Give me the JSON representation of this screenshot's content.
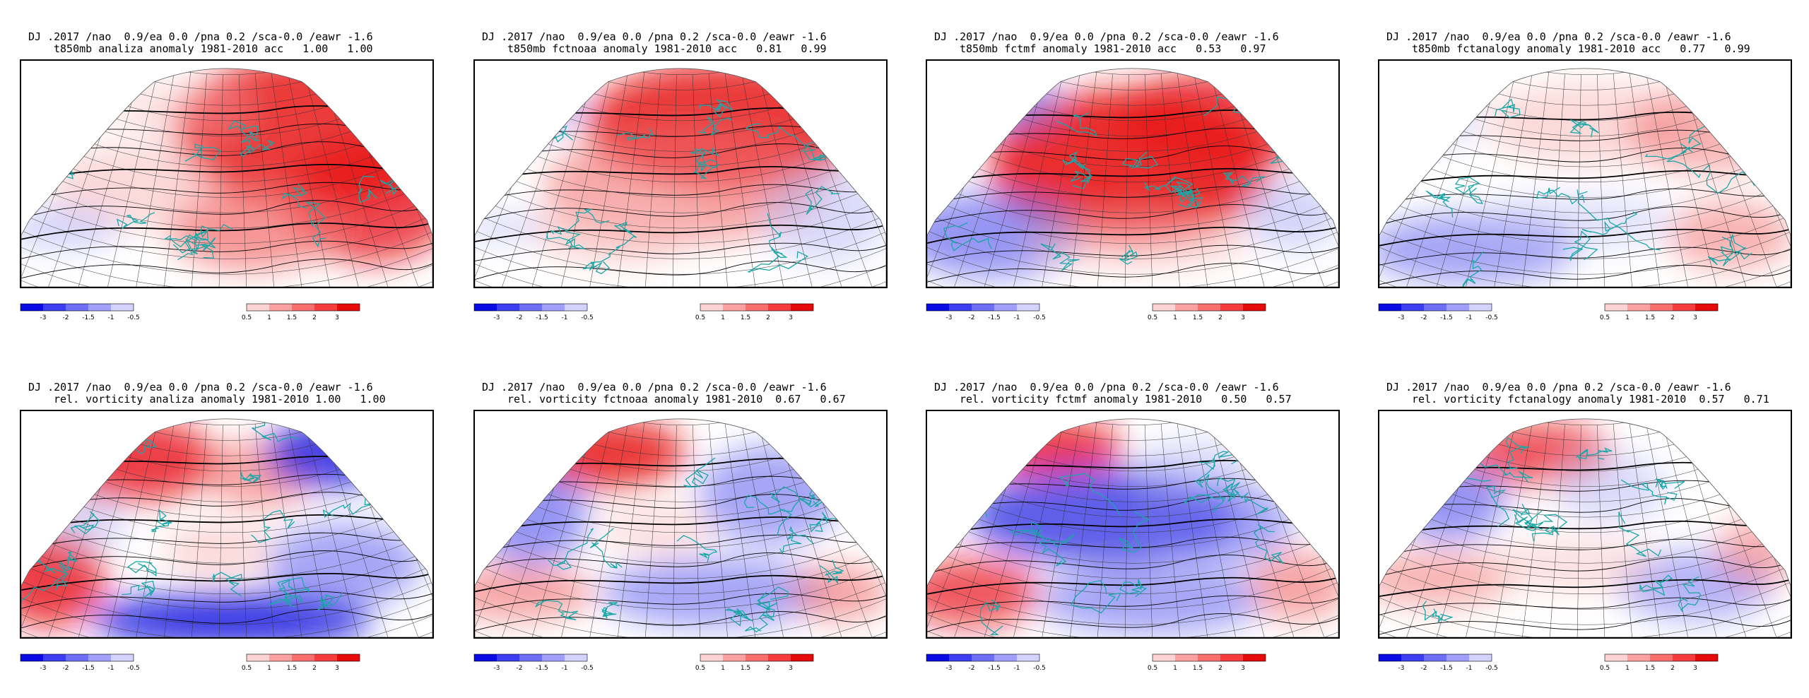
{
  "header_prefix": "DJ .2017 /nao  0.9/ea 0.0 /pna 0.2 /sca-0.0 /eawr -1.6",
  "colorbar": {
    "ticks_neg": [
      "-3",
      "-2",
      "-1.5",
      "-1",
      "-0.5"
    ],
    "ticks_pos": [
      "0.5",
      "1",
      "1.5",
      "2",
      "3"
    ],
    "colors_neg": [
      "#0a0ae6",
      "#3c3cf0",
      "#6e6ef5",
      "#a0a0fa",
      "#d2d2fc"
    ],
    "colors_pos": [
      "#fdd2d2",
      "#fba0a0",
      "#f86e6e",
      "#f53c3c",
      "#e60a0a"
    ]
  },
  "panels": [
    {
      "row": 0,
      "col": 0,
      "header": "DJ .2017 /nao  0.9/ea 0.0 /pna 0.2 /sca-0.0 /eawr -1.6",
      "subtitle": "t850mb analiza anomaly 1981-2010 acc   1.00   1.00",
      "field": "t850-analysis"
    },
    {
      "row": 0,
      "col": 1,
      "header": "DJ .2017 /nao  0.9/ea 0.0 /pna 0.2 /sca-0.0 /eawr -1.6",
      "subtitle": "t850mb fctnoaa anomaly 1981-2010 acc   0.81   0.99",
      "field": "t850-noaa"
    },
    {
      "row": 0,
      "col": 2,
      "header": "DJ .2017 /nao  0.9/ea 0.0 /pna 0.2 /sca-0.0 /eawr -1.6",
      "subtitle": "t850mb fctmf anomaly 1981-2010 acc   0.53   0.97",
      "field": "t850-mf"
    },
    {
      "row": 0,
      "col": 3,
      "header": "DJ .2017 /nao  0.9/ea 0.0 /pna 0.2 /sca-0.0 /eawr -1.6",
      "subtitle": "t850mb fctanalogy anomaly 1981-2010 acc   0.77   0.99",
      "field": "t850-analogy"
    },
    {
      "row": 1,
      "col": 0,
      "header": "DJ .2017 /nao  0.9/ea 0.0 /pna 0.2 /sca-0.0 /eawr -1.6",
      "subtitle": "rel. vorticity analiza anomaly 1981-2010 1.00   1.00",
      "field": "vort-analysis"
    },
    {
      "row": 1,
      "col": 1,
      "header": "DJ .2017 /nao  0.9/ea 0.0 /pna 0.2 /sca-0.0 /eawr -1.6",
      "subtitle": "rel. vorticity fctnoaa anomaly 1981-2010  0.67   0.67",
      "field": "vort-noaa"
    },
    {
      "row": 1,
      "col": 2,
      "header": "DJ .2017 /nao  0.9/ea 0.0 /pna 0.2 /sca-0.0 /eawr -1.6",
      "subtitle": "rel. vorticity fctmf anomaly 1981-2010   0.50   0.57",
      "field": "vort-mf"
    },
    {
      "row": 1,
      "col": 3,
      "header": "DJ .2017 /nao  0.9/ea 0.0 /pna 0.2 /sca-0.0 /eawr -1.6",
      "subtitle": "rel. vorticity fctanalogy anomaly 1981-2010  0.57   0.71",
      "field": "vort-analogy"
    }
  ]
}
